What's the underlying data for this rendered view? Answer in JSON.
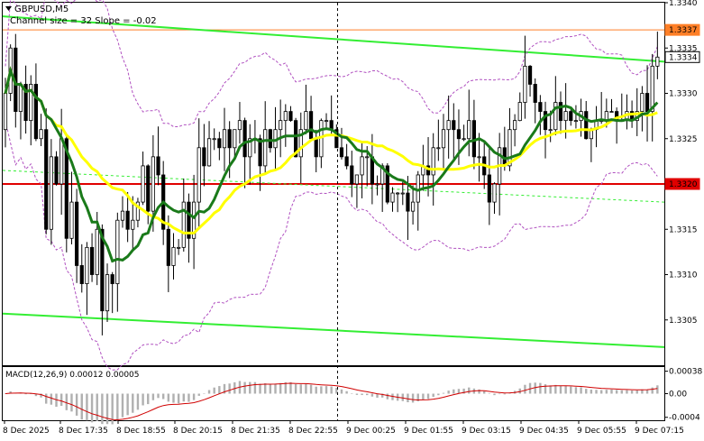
{
  "chart_data": {
    "type": "candlestick",
    "symbol_label": "GBPUSD,M5",
    "subtitle": "Channel size = 32 Slope = -0.02",
    "price_axis": {
      "min": 1.33,
      "max": 1.334,
      "ticks": [
        "1.3340",
        "1.3335",
        "1.3330",
        "1.3325",
        "1.3320",
        "1.3315",
        "1.3310",
        "1.3305"
      ]
    },
    "time_axis": {
      "ticks": [
        "8 Dec 2025",
        "8 Dec 17:35",
        "8 Dec 18:55",
        "8 Dec 20:15",
        "8 Dec 21:35",
        "8 Dec 22:55",
        "9 Dec 00:25",
        "9 Dec 01:55",
        "9 Dec 03:15",
        "9 Dec 04:35",
        "9 Dec 05:55",
        "9 Dec 07:15"
      ]
    },
    "price_labels": [
      {
        "text": "1.3337",
        "value": 1.3337,
        "color": "#ff7f27"
      },
      {
        "text": "1.3334",
        "value": 1.3334,
        "color": "#ffffff"
      },
      {
        "text": "1.3320",
        "value": 1.332,
        "color": "#e00000"
      }
    ],
    "horizontal_levels": [
      {
        "value": 1.3337,
        "color": "#ff7f27"
      },
      {
        "value": 1.332,
        "color": "#e00000"
      }
    ],
    "channel": {
      "color": "#33ee33",
      "upper": [
        1.33385,
        1.33335
      ],
      "lower": [
        1.33057,
        1.3302
      ],
      "mid": [
        1.33215,
        1.3318
      ]
    },
    "candles": {
      "count": 129,
      "close": [
        1.333,
        1.3335,
        1.3328,
        1.3331,
        1.3327,
        1.3331,
        1.3325,
        1.3326,
        1.3315,
        1.3323,
        1.332,
        1.3325,
        1.3314,
        1.3318,
        1.3311,
        1.3309,
        1.3313,
        1.331,
        1.3315,
        1.3306,
        1.331,
        1.3309,
        1.3316,
        1.3317,
        1.3315,
        1.3316,
        1.3318,
        1.3322,
        1.3317,
        1.3323,
        1.3321,
        1.3315,
        1.3311,
        1.3313,
        1.3313,
        1.3318,
        1.3314,
        1.3318,
        1.3324,
        1.3322,
        1.3325,
        1.3325,
        1.3324,
        1.3326,
        1.3324,
        1.3326,
        1.3327,
        1.3323,
        1.3325,
        1.3325,
        1.3322,
        1.3326,
        1.3324,
        1.3326,
        1.3327,
        1.3328,
        1.3327,
        1.3323,
        1.3326,
        1.3328,
        1.3325,
        1.3323,
        1.3327,
        1.3327,
        1.3326,
        1.3324,
        1.3323,
        1.3322,
        1.332,
        1.3321,
        1.3323,
        1.3323,
        1.332,
        1.332,
        1.3322,
        1.3318,
        1.3319,
        1.3319,
        1.3319,
        1.3317,
        1.3318,
        1.3321,
        1.3322,
        1.3321,
        1.3324,
        1.3324,
        1.3326,
        1.3327,
        1.3326,
        1.3325,
        1.3325,
        1.3327,
        1.3323,
        1.3323,
        1.3321,
        1.3318,
        1.332,
        1.3324,
        1.3322,
        1.3326,
        1.3327,
        1.3329,
        1.3333,
        1.3331,
        1.3329,
        1.3328,
        1.3326,
        1.3326,
        1.3329,
        1.3327,
        1.3328,
        1.3327,
        1.3327,
        1.3328,
        1.3325,
        1.3326,
        1.3327,
        1.3327,
        1.3328,
        1.3328,
        1.3327,
        1.3327,
        1.3328,
        1.3327,
        1.3328,
        1.333,
        1.3328,
        1.3333,
        1.3334
      ]
    },
    "indicators": {
      "sma_fast_color": "#1a7a1a",
      "sma_slow_color": "#ffff00",
      "bollinger_color": "#b050c0"
    },
    "macd": {
      "label": "MACD(12,26,9) 0.00012 0.00005",
      "ticks": [
        "0.00038",
        "0.00",
        "-0.0004"
      ],
      "signal_color": "#d00000",
      "hist_color": "#b0b0b0"
    },
    "colors": {
      "bull_candle": "#ffffff",
      "bear_candle": "#000000",
      "cursor_line": "#000000"
    }
  }
}
